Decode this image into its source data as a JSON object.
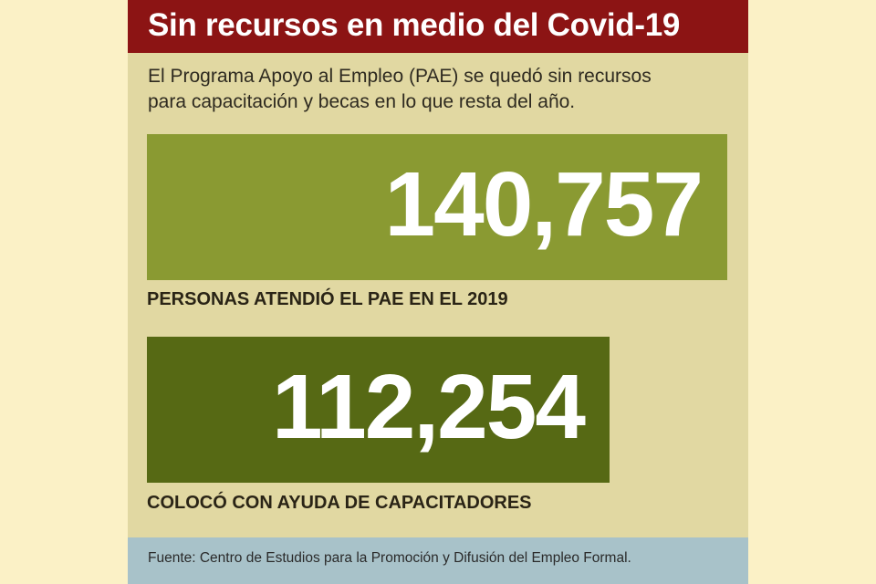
{
  "title": "Sin recursos en medio del Covid-19",
  "subtitle_lines": [
    "El Programa Apoyo al Empleo (PAE) se quedó sin recursos",
    "para capacitación y becas en lo que resta del año."
  ],
  "chart_data": {
    "type": "table",
    "title": "Sin recursos en medio del Covid-19",
    "subtitle": "El Programa Apoyo al Empleo (PAE) se quedó sin recursos para capacitación y becas en lo que resta del año.",
    "stats": [
      {
        "display": "140,757",
        "value": 140757,
        "label": "PERSONAS ATENDIÓ EL PAE EN EL 2019",
        "color": "#8a9a32"
      },
      {
        "display": "112,254",
        "value": 112254,
        "label": "COLOCÓ CON AYUDA DE CAPACITADORES",
        "color": "#566914"
      }
    ],
    "source": "Fuente: Centro de Estudios para la Promoción y Difusión del Empleo Formal."
  },
  "colors": {
    "background": "#fbf1c6",
    "panel": "#e1d8a2",
    "title_bar": "#8c1414",
    "source_bar": "#a8c2c9"
  }
}
